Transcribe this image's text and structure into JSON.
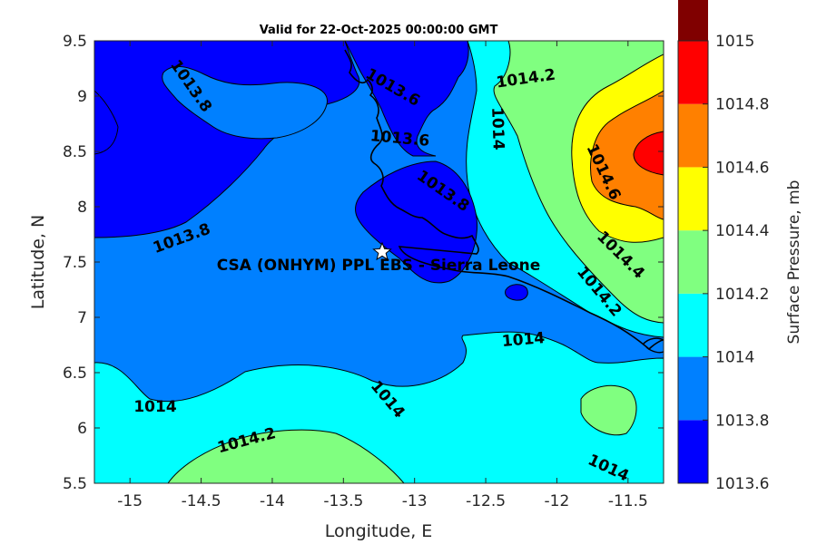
{
  "title": "Valid for 22-Oct-2025 00:00:00 GMT",
  "x_label": "Longitude, E",
  "y_label": "Latitude, N",
  "colorbar_label": "Surface Pressure, mb",
  "station_label": "CSA (ONHYM) PPL EBS  - Sierra Leone",
  "chart_data": {
    "type": "contour",
    "title": "Valid for 22-Oct-2025 00:00:00 GMT",
    "xlabel": "Longitude, E",
    "ylabel": "Latitude, N",
    "xlim": [
      -15.25,
      -11.25
    ],
    "ylim": [
      5.5,
      9.5
    ],
    "xticks": [
      -15,
      -14.5,
      -14,
      -13.5,
      -13,
      -12.5,
      -12,
      -11.5
    ],
    "yticks": [
      5.5,
      6,
      6.5,
      7,
      7.5,
      8,
      8.5,
      9,
      9.5
    ],
    "colorbar": {
      "label": "Surface Pressure, mb",
      "levels": [
        1013.6,
        1013.8,
        1014,
        1014.2,
        1014.4,
        1014.6,
        1014.8,
        1015
      ],
      "colors": [
        "#0000ff",
        "#0080ff",
        "#00ffff",
        "#80ff80",
        "#ffff00",
        "#ff8000",
        "#ff0000",
        "#800000"
      ]
    },
    "contour_labels": [
      {
        "text": "1013.8",
        "lon": -14.55,
        "lat": 9.05,
        "angle": 55
      },
      {
        "text": "1013.6",
        "lon": -12.95,
        "lat": 9.05,
        "angle": 30
      },
      {
        "text": "1014.2",
        "lon": -12.2,
        "lat": 9.15,
        "angle": -8
      },
      {
        "text": "1014",
        "lon": -12.45,
        "lat": 8.7,
        "angle": 88
      },
      {
        "text": "1013.6",
        "lon": -13.05,
        "lat": 8.6,
        "angle": 5
      },
      {
        "text": "1013.8",
        "lon": -12.95,
        "lat": 8.13,
        "angle": 35
      },
      {
        "text": "1014.6",
        "lon": -11.78,
        "lat": 8.3,
        "angle": 65
      },
      {
        "text": "1013.8",
        "lon": -14.6,
        "lat": 7.76,
        "angle": -20
      },
      {
        "text": "1014.4",
        "lon": -11.75,
        "lat": 7.55,
        "angle": 45
      },
      {
        "text": "1014.2",
        "lon": -11.9,
        "lat": 7.2,
        "angle": 50
      },
      {
        "text": "1014",
        "lon": -12.22,
        "lat": 6.8,
        "angle": -5
      },
      {
        "text": "1014",
        "lon": -13.55,
        "lat": 6.2,
        "angle": 50
      },
      {
        "text": "1014",
        "lon": -14.85,
        "lat": 6.19,
        "angle": 0
      },
      {
        "text": "1014.2",
        "lon": -14.05,
        "lat": 5.86,
        "angle": -15
      },
      {
        "text": "1014",
        "lon": -11.87,
        "lat": 5.6,
        "angle": 25
      }
    ],
    "station": {
      "name": "CSA (ONHYM) PPL EBS  - Sierra Leone",
      "lon": -13.23,
      "lat": 7.59
    }
  }
}
